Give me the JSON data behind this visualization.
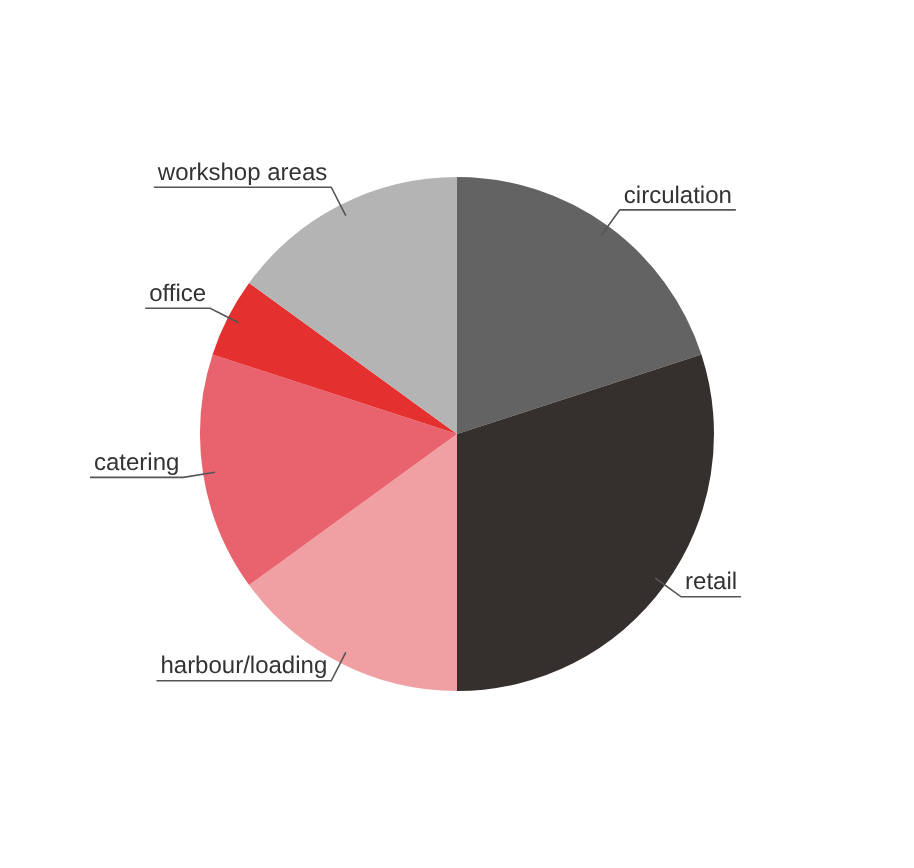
{
  "chart_data": {
    "type": "pie",
    "categories": [
      "circulation",
      "retail",
      "harbour/loading",
      "catering",
      "office",
      "workshop areas"
    ],
    "values": [
      20,
      30,
      15,
      15,
      5,
      15
    ],
    "colors": [
      "#636363",
      "#35302d",
      "#f0a0a3",
      "#e8636d",
      "#e53030",
      "#b4b4b4"
    ],
    "legend": false
  }
}
